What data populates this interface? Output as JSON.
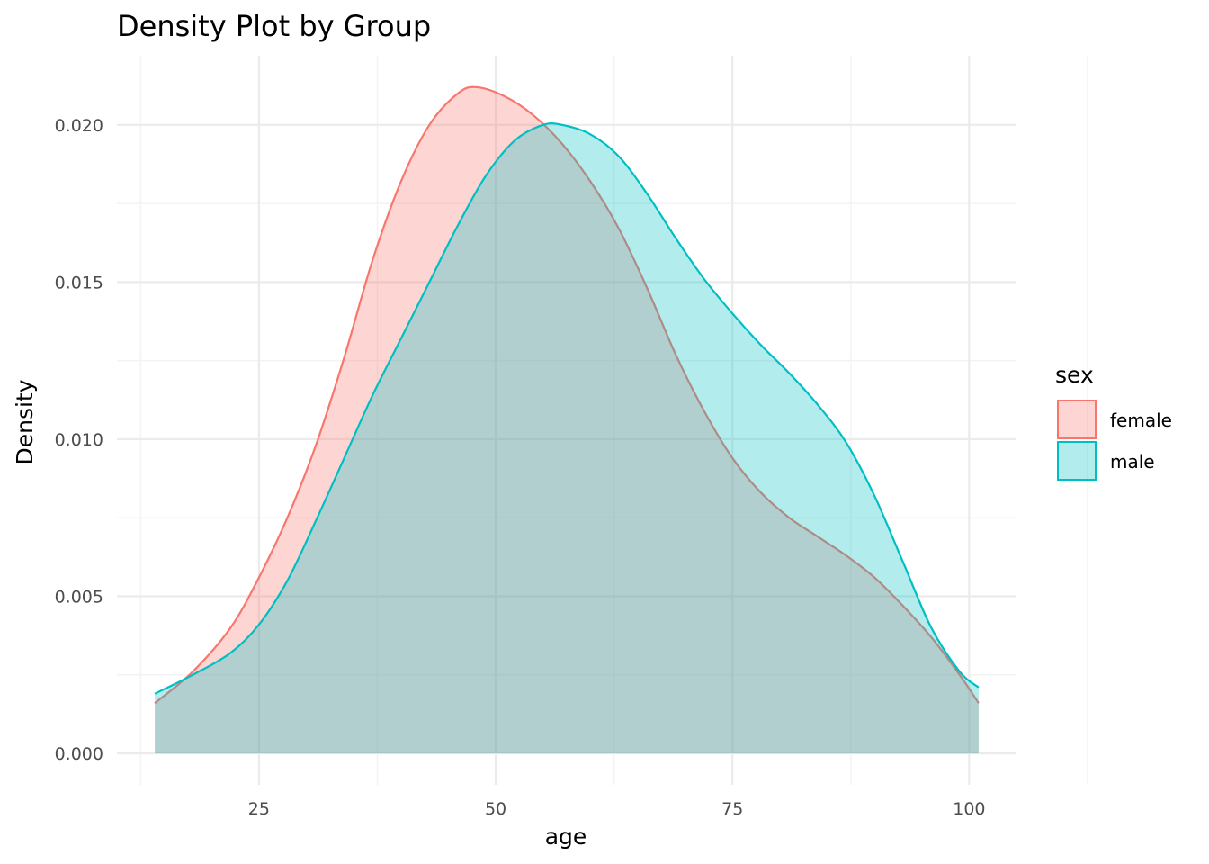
{
  "chart_data": {
    "type": "area",
    "title": "Density Plot by Group",
    "xlabel": "age",
    "ylabel": "Density",
    "xlim": [
      10,
      105
    ],
    "ylim": [
      -0.001,
      0.0222
    ],
    "x_ticks": [
      25,
      50,
      75,
      100
    ],
    "x_tick_labels": [
      "25",
      "50",
      "75",
      "100"
    ],
    "y_ticks": [
      0,
      0.005,
      0.01,
      0.015,
      0.02
    ],
    "y_tick_labels": [
      "0.000",
      "0.005",
      "0.010",
      "0.015",
      "0.020"
    ],
    "grid": true,
    "legend": {
      "title": "sex",
      "position": "right"
    },
    "series": [
      {
        "name": "female",
        "color": "#F8766D",
        "fill": "#F8766D",
        "fill_opacity": 0.3,
        "points": [
          [
            14,
            0.0016
          ],
          [
            18,
            0.0026
          ],
          [
            22,
            0.004
          ],
          [
            25,
            0.0056
          ],
          [
            28,
            0.0075
          ],
          [
            31,
            0.0098
          ],
          [
            34,
            0.0126
          ],
          [
            37,
            0.0157
          ],
          [
            40,
            0.0182
          ],
          [
            43,
            0.02
          ],
          [
            46,
            0.021
          ],
          [
            48,
            0.0212
          ],
          [
            51,
            0.0209
          ],
          [
            54,
            0.0203
          ],
          [
            57,
            0.0194
          ],
          [
            60,
            0.0182
          ],
          [
            63,
            0.0167
          ],
          [
            66,
            0.0148
          ],
          [
            69,
            0.0127
          ],
          [
            72,
            0.0109
          ],
          [
            75,
            0.0094
          ],
          [
            78,
            0.0083
          ],
          [
            81,
            0.0075
          ],
          [
            84,
            0.0069
          ],
          [
            87,
            0.0063
          ],
          [
            90,
            0.0056
          ],
          [
            93,
            0.0047
          ],
          [
            96,
            0.0037
          ],
          [
            99,
            0.0025
          ],
          [
            101,
            0.0016
          ]
        ]
      },
      {
        "name": "male",
        "color": "#00BFC4",
        "fill": "#00BFC4",
        "fill_opacity": 0.3,
        "points": [
          [
            14,
            0.0019
          ],
          [
            18,
            0.0025
          ],
          [
            22,
            0.0032
          ],
          [
            25,
            0.0041
          ],
          [
            28,
            0.0055
          ],
          [
            31,
            0.0074
          ],
          [
            34,
            0.0094
          ],
          [
            37,
            0.0114
          ],
          [
            40,
            0.0132
          ],
          [
            43,
            0.015
          ],
          [
            46,
            0.0168
          ],
          [
            49,
            0.0184
          ],
          [
            52,
            0.0195
          ],
          [
            55,
            0.02
          ],
          [
            57,
            0.02
          ],
          [
            60,
            0.0197
          ],
          [
            63,
            0.019
          ],
          [
            66,
            0.0178
          ],
          [
            69,
            0.0164
          ],
          [
            72,
            0.0151
          ],
          [
            75,
            0.014
          ],
          [
            78,
            0.013
          ],
          [
            81,
            0.0121
          ],
          [
            84,
            0.0111
          ],
          [
            87,
            0.0099
          ],
          [
            90,
            0.0082
          ],
          [
            93,
            0.0061
          ],
          [
            96,
            0.004
          ],
          [
            99,
            0.0026
          ],
          [
            101,
            0.0021
          ]
        ]
      }
    ]
  }
}
